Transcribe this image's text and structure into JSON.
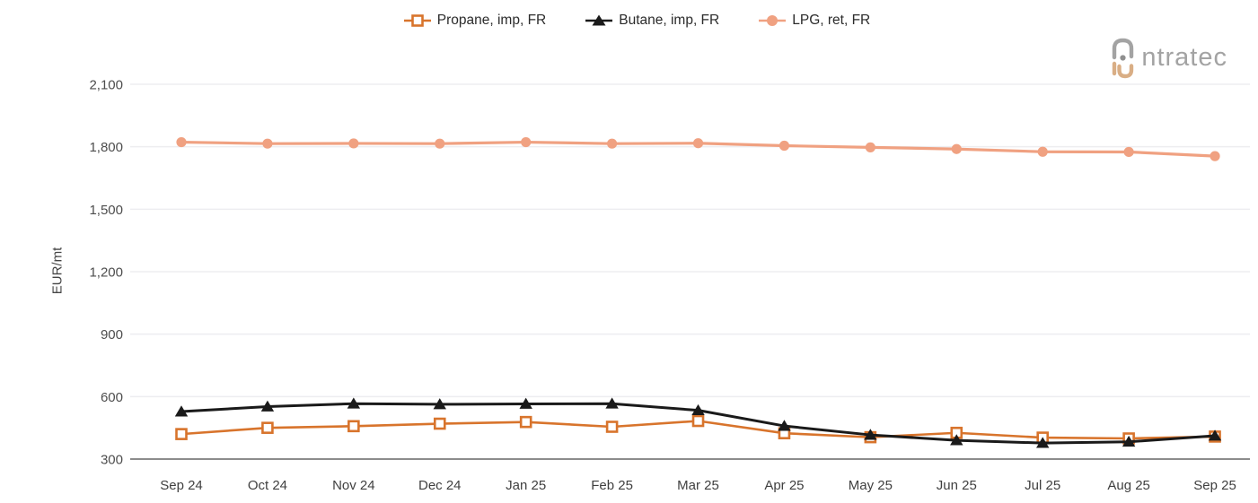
{
  "brand": {
    "logo_text": "ntratec",
    "logo_full": "intratec",
    "logo_gray": "#a3a3a3",
    "logo_tan": "#d9ae85"
  },
  "colors": {
    "propane": "#d8742c",
    "butane": "#1a1a1a",
    "lpg": "#f0a181",
    "gridline": "#ededf0",
    "axis_line": "#8c8c8c",
    "tick_text": "#4d4d4d"
  },
  "chart_data": {
    "type": "line",
    "title": "",
    "xlabel": "",
    "ylabel": "EUR/mt",
    "ylim": [
      300,
      2100
    ],
    "yticks": [
      300,
      600,
      900,
      1200,
      1500,
      1800,
      2100
    ],
    "grid": true,
    "legend_position": "top",
    "categories": [
      "Sep 24",
      "Oct 24",
      "Nov 24",
      "Dec 24",
      "Jan 25",
      "Feb 25",
      "Mar 25",
      "Apr 25",
      "May 25",
      "Jun 25",
      "Jul 25",
      "Aug 25",
      "Sep 25"
    ],
    "series": [
      {
        "name": "Propane, imp, FR",
        "marker": "square-open",
        "color": "#d8742c",
        "values": [
          420,
          450,
          458,
          470,
          478,
          455,
          483,
          424,
          405,
          426,
          403,
          399,
          408
        ]
      },
      {
        "name": "Butane, imp, FR",
        "marker": "triangle",
        "color": "#1a1a1a",
        "values": [
          528,
          552,
          566,
          563,
          565,
          566,
          534,
          459,
          416,
          390,
          377,
          383,
          412
        ]
      },
      {
        "name": "LPG, ret, FR",
        "marker": "circle",
        "color": "#f0a181",
        "values": [
          1822,
          1815,
          1816,
          1815,
          1822,
          1815,
          1817,
          1805,
          1797,
          1789,
          1776,
          1775,
          1755
        ]
      }
    ]
  }
}
